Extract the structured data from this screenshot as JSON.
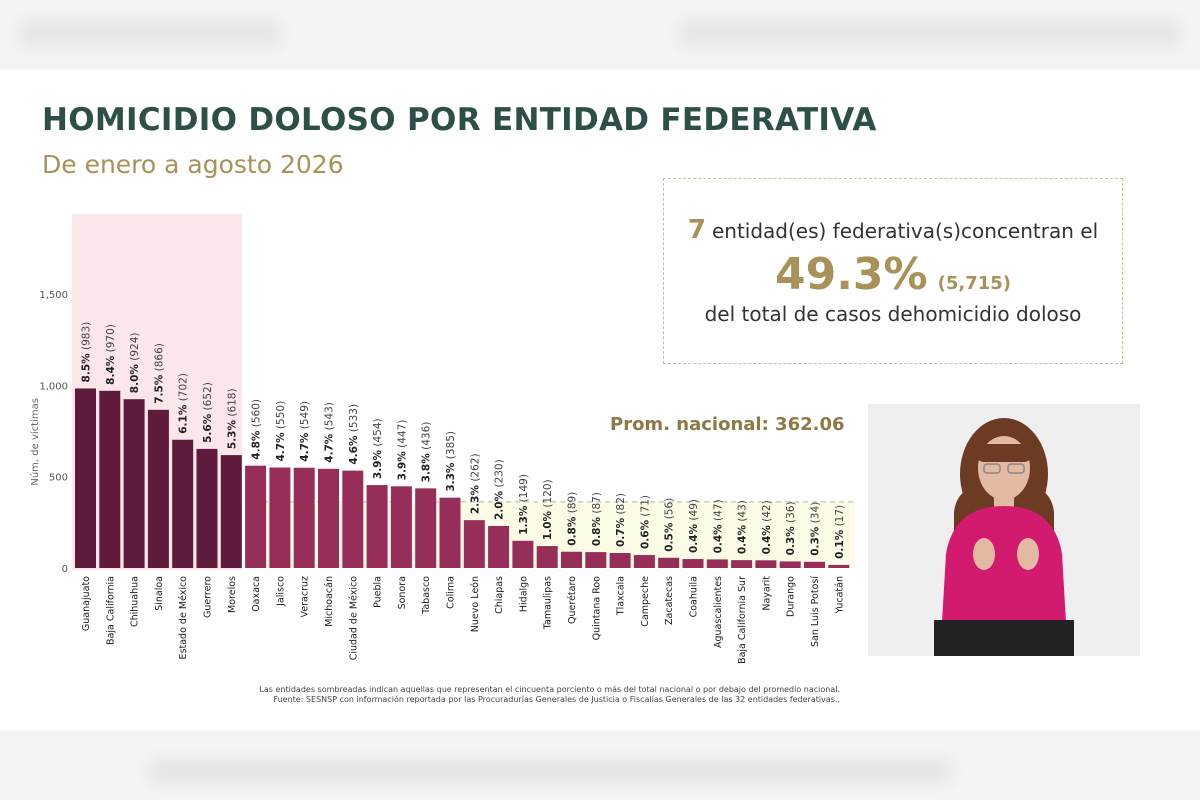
{
  "page": {
    "title": "HOMICIDIO DOLOSO POR ENTIDAD FEDERATIVA",
    "subtitle": "De enero a agosto 2026"
  },
  "info_box": {
    "count": "7",
    "line1": "entidad(es) federativa(s)concentran el",
    "percent": "49.3%",
    "total": "(5,715)",
    "line3": "del total de casos dehomicidio doloso"
  },
  "average_label": "Prom. nacional: 362.06",
  "footnote": {
    "line1": "Las entidades sombreadas indican aquellas que representan el cincuenta porciento o más del total nacional o por debajo del promedio nacional.",
    "line2": "Fuente: SESNSP con información reportada por las Procuradurías Generales de Justicia o Fiscalías Generales de las 32 entidades federativas.."
  },
  "chart_data": {
    "type": "bar",
    "ylabel": "Núm. de víctimas",
    "ylim": [
      0,
      1700
    ],
    "yticks": [
      0,
      500,
      1000,
      1500
    ],
    "ytick_labels": [
      "0",
      "500",
      "1,000",
      "1,500"
    ],
    "average": 362.06,
    "highlight_count": 7,
    "colors": {
      "top": "#5e1b3b",
      "rest": "#962e59",
      "average_band": "#fbfbe6",
      "highlight_band": "#fbe6ea"
    },
    "categories": [
      "Guanajuato",
      "Baja California",
      "Chihuahua",
      "Sinaloa",
      "Estado de México",
      "Guerrero",
      "Morelos",
      "Oaxaca",
      "Jalisco",
      "Veracruz",
      "Michoacán",
      "Ciudad de México",
      "Puebla",
      "Sonora",
      "Tabasco",
      "Colima",
      "Nuevo León",
      "Chiapas",
      "Hidalgo",
      "Tamaulipas",
      "Querétaro",
      "Quintana Roo",
      "Tlaxcala",
      "Campeche",
      "Zacatecas",
      "Coahuila",
      "Aguascalientes",
      "Baja California Sur",
      "Nayarit",
      "Durango",
      "San Luis Potosí",
      "Yucatán"
    ],
    "values": [
      983,
      970,
      924,
      866,
      702,
      652,
      618,
      560,
      550,
      549,
      543,
      533,
      454,
      447,
      436,
      385,
      262,
      230,
      149,
      120,
      89,
      87,
      82,
      71,
      56,
      49,
      47,
      43,
      42,
      36,
      34,
      17
    ],
    "percents": [
      "8.5%",
      "8.4%",
      "8.0%",
      "7.5%",
      "6.1%",
      "5.6%",
      "5.3%",
      "4.8%",
      "4.7%",
      "4.7%",
      "4.7%",
      "4.6%",
      "3.9%",
      "3.9%",
      "3.8%",
      "3.3%",
      "2.3%",
      "2.0%",
      "1.3%",
      "1.0%",
      "0.8%",
      "0.8%",
      "0.7%",
      "0.6%",
      "0.5%",
      "0.4%",
      "0.4%",
      "0.4%",
      "0.4%",
      "0.3%",
      "0.3%",
      "0.1%"
    ],
    "counts": [
      "(983)",
      "(970)",
      "(924)",
      "(866)",
      "(702)",
      "(652)",
      "(618)",
      "(560)",
      "(550)",
      "(549)",
      "(543)",
      "(533)",
      "(454)",
      "(447)",
      "(436)",
      "(385)",
      "(262)",
      "(230)",
      "(149)",
      "(120)",
      "(89)",
      "(87)",
      "(82)",
      "(71)",
      "(56)",
      "(49)",
      "(47)",
      "(43)",
      "(42)",
      "(36)",
      "(34)",
      "(17)"
    ]
  }
}
